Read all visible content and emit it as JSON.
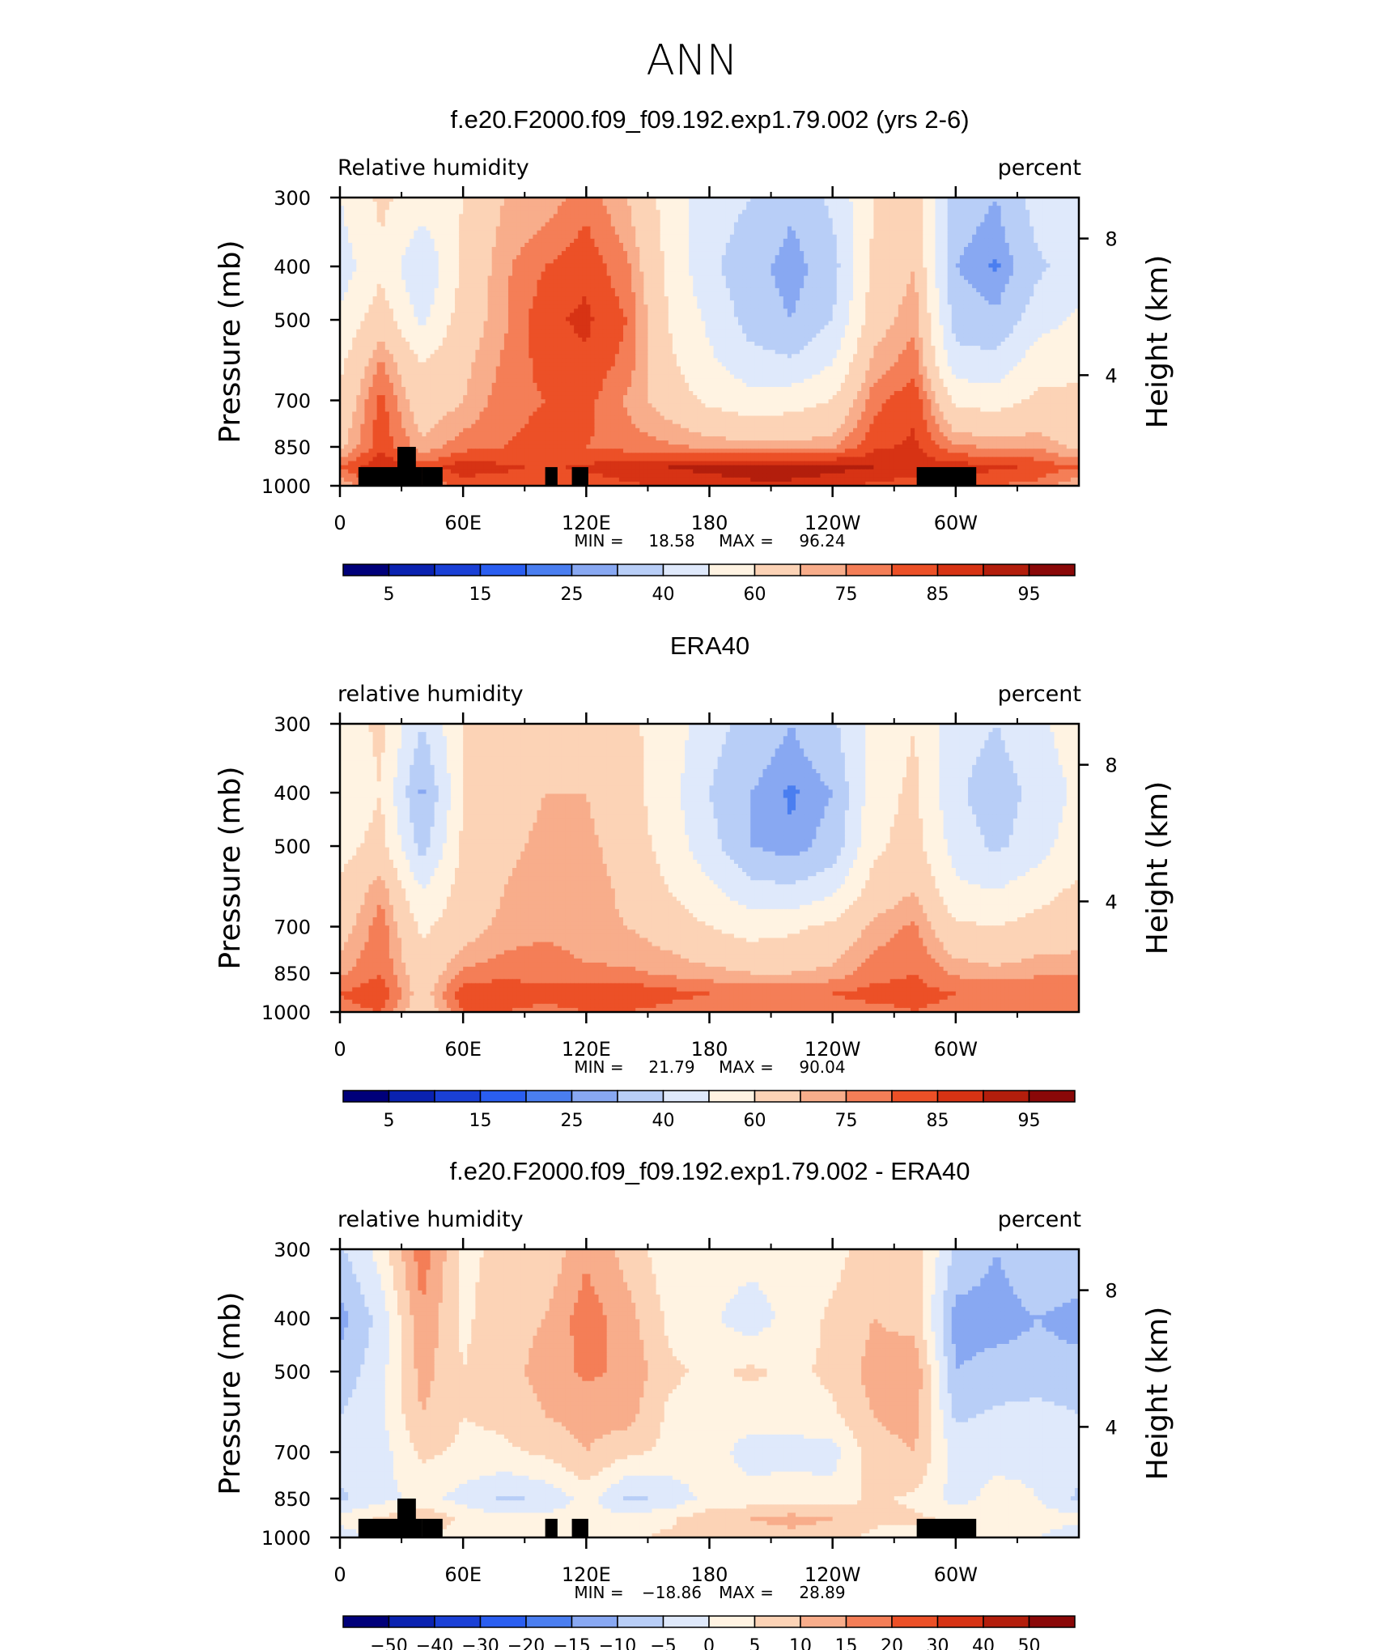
{
  "page": {
    "season_title": "ANN"
  },
  "colors": {
    "abs_scale": [
      "#00007a",
      "#0a22b0",
      "#1a40d6",
      "#2a5ef0",
      "#4a7ef0",
      "#88a8f2",
      "#b8cef7",
      "#dfe9fb",
      "#fff3e2",
      "#fcd3b6",
      "#f8ad8b",
      "#f47e57",
      "#ec5027",
      "#d73314",
      "#b31e0c",
      "#8a0808"
    ],
    "diff_scale": [
      "#00007a",
      "#0a22b0",
      "#1a40d6",
      "#2a5ef0",
      "#4a7ef0",
      "#88a8f2",
      "#b8cef7",
      "#dfe9fb",
      "#fff3e2",
      "#fcd3b6",
      "#f8ad8b",
      "#f47e57",
      "#ec5027",
      "#d73314",
      "#b31e0c",
      "#8a0808"
    ],
    "terrain": "#000000"
  },
  "chart_data": [
    {
      "type": "heatmap",
      "title": "f.e20.F2000.f09_f09.192.exp1.79.002 (yrs 2-6)",
      "left_label": "Relative humidity",
      "right_label": "percent",
      "ylabel": "Pressure (mb)",
      "y2label": "Height (km)",
      "x_ticks": [
        "0",
        "60E",
        "120E",
        "180",
        "120W",
        "60W"
      ],
      "y_ticks": [
        "300",
        "400",
        "500",
        "700",
        "850",
        "1000"
      ],
      "y2_ticks": [
        "8",
        "4"
      ],
      "stats": {
        "min_label": "MIN =",
        "min": "18.58",
        "max_label": "MAX =",
        "max": "96.24"
      },
      "colorbar_labels": [
        "5",
        "15",
        "25",
        "40",
        "60",
        "75",
        "85",
        "95"
      ],
      "levels": [
        5,
        10,
        15,
        20,
        25,
        30,
        40,
        50,
        60,
        70,
        75,
        80,
        85,
        90,
        95
      ],
      "x_longitudes": [
        0,
        20,
        40,
        60,
        80,
        100,
        120,
        140,
        160,
        180,
        200,
        220,
        240,
        260,
        280,
        300,
        320,
        340,
        360
      ],
      "pressure_levels": [
        300,
        400,
        500,
        600,
        700,
        850,
        925,
        1000
      ],
      "values": [
        [
          50,
          62,
          55,
          60,
          70,
          72,
          78,
          70,
          56,
          45,
          40,
          32,
          42,
          60,
          68,
          35,
          30,
          45,
          50
        ],
        [
          45,
          58,
          40,
          62,
          74,
          80,
          84,
          76,
          58,
          42,
          34,
          26,
          36,
          62,
          70,
          30,
          24,
          38,
          45
        ],
        [
          52,
          66,
          48,
          65,
          74,
          84,
          86,
          80,
          60,
          48,
          36,
          30,
          40,
          66,
          74,
          36,
          32,
          46,
          52
        ],
        [
          58,
          76,
          60,
          68,
          76,
          82,
          84,
          78,
          62,
          52,
          44,
          42,
          50,
          72,
          78,
          44,
          44,
          56,
          58
        ],
        [
          62,
          82,
          64,
          70,
          78,
          80,
          82,
          74,
          66,
          58,
          54,
          56,
          60,
          78,
          84,
          58,
          56,
          62,
          62
        ],
        [
          68,
          84,
          72,
          78,
          80,
          82,
          80,
          78,
          76,
          74,
          72,
          72,
          74,
          84,
          86,
          76,
          74,
          74,
          68
        ],
        [
          80,
          90,
          82,
          88,
          86,
          84,
          86,
          88,
          90,
          92,
          94,
          94,
          92,
          90,
          88,
          88,
          86,
          84,
          80
        ],
        [
          70,
          82,
          76,
          82,
          82,
          80,
          82,
          84,
          86,
          86,
          88,
          88,
          86,
          84,
          82,
          80,
          80,
          78,
          70
        ]
      ]
    },
    {
      "type": "heatmap",
      "title": "ERA40",
      "left_label": "relative humidity",
      "right_label": "percent",
      "ylabel": "Pressure (mb)",
      "y2label": "Height (km)",
      "x_ticks": [
        "0",
        "60E",
        "120E",
        "180",
        "120W",
        "60W"
      ],
      "y_ticks": [
        "300",
        "400",
        "500",
        "700",
        "850",
        "1000"
      ],
      "y2_ticks": [
        "8",
        "4"
      ],
      "stats": {
        "min_label": "MIN =",
        "min": "21.79",
        "max_label": "MAX =",
        "max": "90.04"
      },
      "colorbar_labels": [
        "5",
        "15",
        "25",
        "40",
        "60",
        "75",
        "85",
        "95"
      ],
      "levels": [
        5,
        10,
        15,
        20,
        25,
        30,
        40,
        50,
        60,
        70,
        75,
        80,
        85,
        90,
        95
      ],
      "x_longitudes": [
        0,
        20,
        40,
        60,
        80,
        100,
        120,
        140,
        160,
        180,
        200,
        220,
        240,
        260,
        280,
        300,
        320,
        340,
        360
      ],
      "pressure_levels": [
        300,
        400,
        500,
        600,
        700,
        850,
        925,
        1000
      ],
      "values": [
        [
          55,
          62,
          40,
          60,
          64,
          66,
          66,
          62,
          56,
          44,
          36,
          30,
          38,
          54,
          60,
          44,
          40,
          48,
          55
        ],
        [
          52,
          60,
          28,
          60,
          66,
          70,
          70,
          64,
          54,
          40,
          30,
          24,
          30,
          56,
          62,
          42,
          34,
          44,
          52
        ],
        [
          56,
          64,
          36,
          62,
          68,
          72,
          72,
          66,
          56,
          44,
          30,
          26,
          34,
          58,
          64,
          46,
          38,
          46,
          56
        ],
        [
          62,
          74,
          50,
          64,
          70,
          74,
          74,
          68,
          60,
          52,
          44,
          42,
          48,
          64,
          70,
          52,
          50,
          56,
          62
        ],
        [
          66,
          78,
          58,
          66,
          72,
          74,
          72,
          70,
          66,
          60,
          56,
          58,
          62,
          72,
          76,
          62,
          60,
          64,
          66
        ],
        [
          74,
          80,
          64,
          76,
          78,
          78,
          76,
          76,
          74,
          72,
          70,
          70,
          72,
          78,
          80,
          74,
          72,
          74,
          74
        ],
        [
          80,
          84,
          66,
          84,
          84,
          82,
          84,
          84,
          82,
          80,
          80,
          80,
          80,
          82,
          82,
          80,
          80,
          80,
          80
        ],
        [
          78,
          80,
          64,
          80,
          80,
          78,
          80,
          80,
          78,
          76,
          78,
          78,
          78,
          78,
          80,
          78,
          78,
          78,
          78
        ]
      ]
    },
    {
      "type": "heatmap",
      "title": "f.e20.F2000.f09_f09.192.exp1.79.002 - ERA40",
      "left_label": "relative humidity",
      "right_label": "percent",
      "ylabel": "Pressure (mb)",
      "y2label": "Height (km)",
      "x_ticks": [
        "0",
        "60E",
        "120E",
        "180",
        "120W",
        "60W"
      ],
      "y_ticks": [
        "300",
        "400",
        "500",
        "700",
        "850",
        "1000"
      ],
      "y2_ticks": [
        "8",
        "4"
      ],
      "stats": {
        "min_label": "MIN =",
        "min": "−18.86",
        "max_label": "MAX =",
        "max": "28.89"
      },
      "colorbar_labels": [
        "−50",
        "−40",
        "−30",
        "−20",
        "−15",
        "−10",
        "−5",
        "0",
        "5",
        "10",
        "15",
        "20",
        "30",
        "40",
        "50"
      ],
      "levels": [
        -50,
        -40,
        -30,
        -20,
        -15,
        -10,
        -5,
        0,
        5,
        10,
        15,
        20,
        30,
        40,
        50
      ],
      "x_longitudes": [
        0,
        20,
        40,
        60,
        80,
        100,
        120,
        140,
        160,
        180,
        200,
        220,
        240,
        260,
        280,
        300,
        320,
        340,
        360
      ],
      "pressure_levels": [
        300,
        400,
        500,
        600,
        700,
        850,
        925,
        1000
      ],
      "values": [
        [
          -6,
          2,
          18,
          4,
          6,
          6,
          14,
          8,
          2,
          3,
          2,
          2,
          3,
          8,
          8,
          -6,
          -10,
          -6,
          -6
        ],
        [
          -12,
          -3,
          14,
          4,
          8,
          10,
          18,
          12,
          4,
          1,
          -3,
          2,
          6,
          10,
          8,
          -12,
          -12,
          -10,
          -12
        ],
        [
          -8,
          -2,
          12,
          5,
          8,
          12,
          16,
          14,
          6,
          4,
          6,
          4,
          6,
          12,
          14,
          -10,
          -8,
          -8,
          -8
        ],
        [
          -5,
          -1,
          10,
          5,
          6,
          10,
          12,
          12,
          4,
          2,
          2,
          2,
          4,
          10,
          12,
          -6,
          -4,
          -3,
          -5
        ],
        [
          -3,
          -2,
          6,
          4,
          4,
          6,
          10,
          6,
          4,
          2,
          -2,
          -2,
          -2,
          8,
          10,
          -2,
          -2,
          -1,
          -3
        ],
        [
          -6,
          -2,
          2,
          -2,
          -6,
          -4,
          2,
          -6,
          -4,
          2,
          2,
          3,
          2,
          6,
          4,
          -2,
          2,
          0,
          -6
        ],
        [
          2,
          6,
          10,
          4,
          2,
          2,
          2,
          2,
          4,
          8,
          10,
          12,
          10,
          6,
          6,
          4,
          4,
          2,
          2
        ],
        [
          -4,
          2,
          4,
          2,
          2,
          2,
          2,
          4,
          6,
          6,
          6,
          8,
          6,
          4,
          2,
          2,
          2,
          0,
          -4
        ]
      ]
    }
  ]
}
